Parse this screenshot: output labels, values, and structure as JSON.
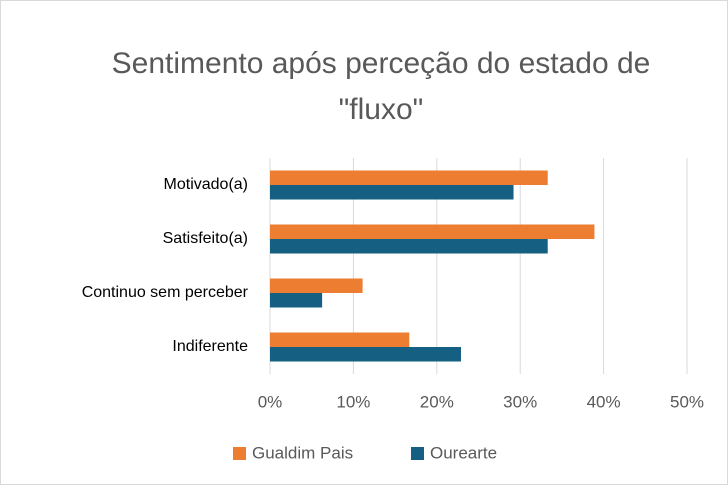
{
  "chart_data": {
    "type": "hbar",
    "title": "Sentimento após perceção do estado de \"fluxo\"",
    "categories": [
      "Motivado(a)",
      "Satisfeito(a)",
      "Continuo sem perceber",
      "Indiferente"
    ],
    "series": [
      {
        "name": "Gualdim Pais",
        "color": "#ED7D31",
        "values": [
          33.3,
          38.9,
          11.1,
          16.7
        ]
      },
      {
        "name": "Ourearte",
        "color": "#156082",
        "values": [
          29.2,
          33.3,
          6.25,
          22.9
        ]
      }
    ],
    "xlim": [
      0,
      50
    ],
    "xticks": [
      {
        "value": 0,
        "label": "0%"
      },
      {
        "value": 10,
        "label": "10%"
      },
      {
        "value": 20,
        "label": "20%"
      },
      {
        "value": 30,
        "label": "30%"
      },
      {
        "value": 40,
        "label": "40%"
      },
      {
        "value": 50,
        "label": "50%"
      }
    ],
    "grid": true,
    "legend": "bottom"
  }
}
